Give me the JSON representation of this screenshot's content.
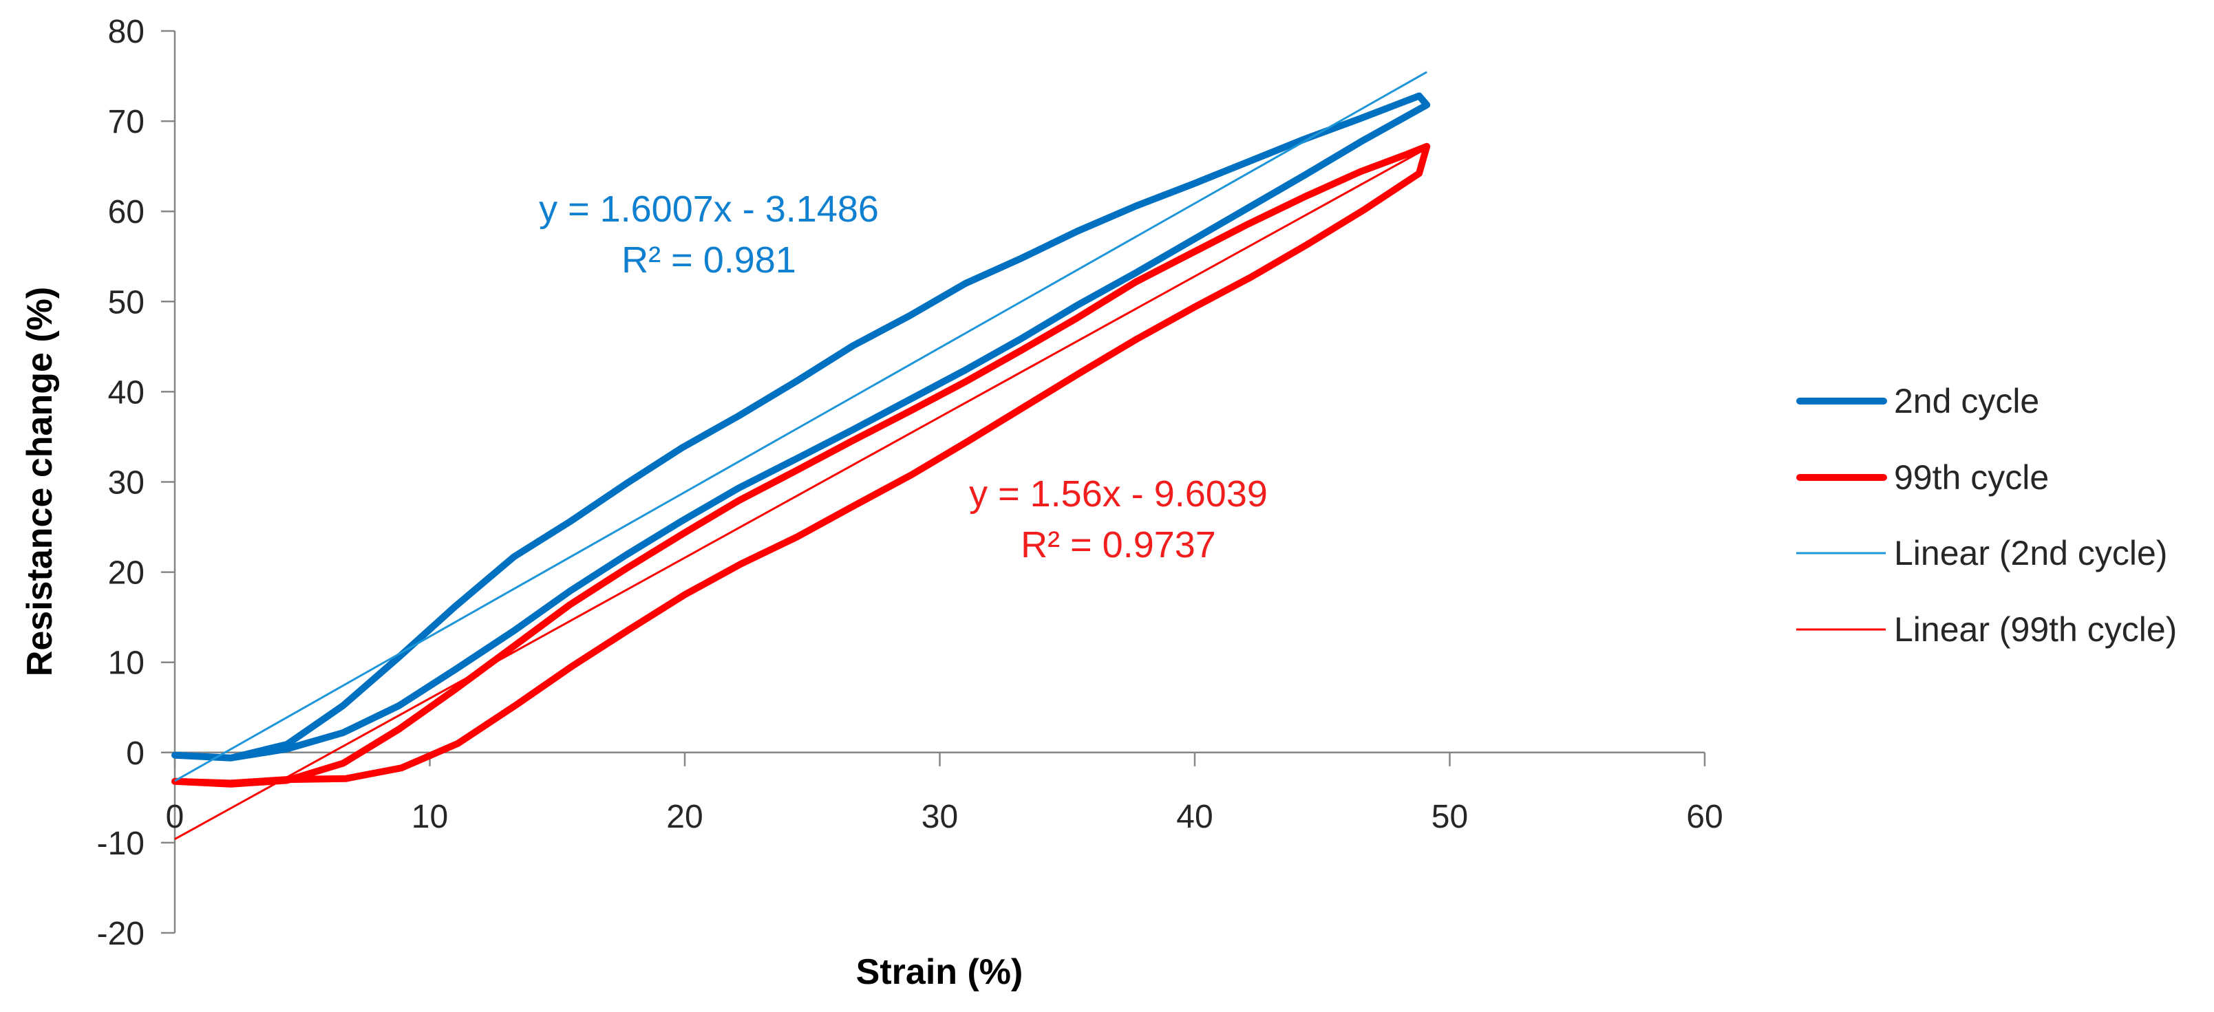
{
  "chart_data": {
    "type": "line",
    "title": "",
    "xlabel": "Strain (%)",
    "ylabel": "Resistance change (%)",
    "xlim": [
      0,
      60
    ],
    "ylim": [
      -20,
      80
    ],
    "xticks": [
      0,
      10,
      20,
      30,
      40,
      50,
      60
    ],
    "yticks": [
      -20,
      -10,
      0,
      10,
      20,
      30,
      40,
      50,
      60,
      70,
      80
    ],
    "grid": false,
    "series": [
      {
        "name": "2nd cycle",
        "color": "#0070C0",
        "x": [
          0,
          2.2,
          4.4,
          6.6,
          8.8,
          11.0,
          13.3,
          15.5,
          17.7,
          19.9,
          22.1,
          24.4,
          26.6,
          28.8,
          31.0,
          33.2,
          35.4,
          37.7,
          39.9,
          42.1,
          44.3,
          46.5,
          48.8,
          49.1,
          46.5,
          44.3,
          42.1,
          39.9,
          37.7,
          35.4,
          33.2,
          31.0,
          28.8,
          26.6,
          24.4,
          22.1,
          19.9,
          17.7,
          15.5,
          13.3,
          11.0,
          8.8,
          6.6,
          4.4,
          2.2,
          0
        ],
        "y": [
          -0.3,
          -0.6,
          0.9,
          5.2,
          10.6,
          16.2,
          21.7,
          25.6,
          29.8,
          33.8,
          37.3,
          41.2,
          45.1,
          48.4,
          52.0,
          54.8,
          57.8,
          60.6,
          63.0,
          65.5,
          68.0,
          70.3,
          72.8,
          71.8,
          67.7,
          64.0,
          60.4,
          56.8,
          53.2,
          49.6,
          45.9,
          42.4,
          39.1,
          35.8,
          32.6,
          29.3,
          25.7,
          21.9,
          17.9,
          13.5,
          9.2,
          5.2,
          2.2,
          0.4,
          -0.6,
          -0.3
        ]
      },
      {
        "name": "99th cycle",
        "color": "#FF0000",
        "x": [
          0,
          2.2,
          4.4,
          6.6,
          8.8,
          11.0,
          13.3,
          15.5,
          17.7,
          19.9,
          22.1,
          24.4,
          26.6,
          28.8,
          31.0,
          33.2,
          35.4,
          37.7,
          39.9,
          42.1,
          44.3,
          46.5,
          48.3,
          49.1,
          48.8,
          46.6,
          44.4,
          42.2,
          40.0,
          37.7,
          35.5,
          33.3,
          31.1,
          28.9,
          26.6,
          24.4,
          22.2,
          20.0,
          17.8,
          15.6,
          13.4,
          11.1,
          8.9,
          6.7,
          4.4,
          2.2,
          0
        ],
        "y": [
          -3.2,
          -3.5,
          -3.1,
          -1.2,
          2.6,
          7.0,
          11.8,
          16.4,
          20.4,
          24.2,
          27.9,
          31.3,
          34.6,
          37.8,
          41.1,
          44.6,
          48.2,
          52.2,
          55.4,
          58.6,
          61.6,
          64.4,
          66.3,
          67.2,
          64.2,
          60.1,
          56.3,
          52.7,
          49.4,
          45.8,
          42.1,
          38.3,
          34.5,
          30.8,
          27.3,
          23.9,
          20.9,
          17.5,
          13.6,
          9.6,
          5.3,
          1.0,
          -1.7,
          -2.9,
          -3.0,
          -3.4,
          -3.2
        ]
      }
    ],
    "trendlines": [
      {
        "name": "Linear (2nd cycle)",
        "color": "#1E96D8",
        "label_color": "#0F7FCF",
        "slope": 1.6007,
        "intercept": -3.1486,
        "r2": 0.981,
        "x_range": [
          0,
          49.1
        ],
        "equation_label": "y = 1.6007x - 3.1486",
        "r2_label": "R² = 0.981"
      },
      {
        "name": "Linear (99th cycle)",
        "color": "#FF0000",
        "label_color": "#F21D1D",
        "slope": 1.56,
        "intercept": -9.6039,
        "r2": 0.9737,
        "x_range": [
          0,
          49.1
        ],
        "equation_label": "y = 1.56x - 9.6039",
        "r2_label": "R² = 0.9737"
      }
    ]
  }
}
